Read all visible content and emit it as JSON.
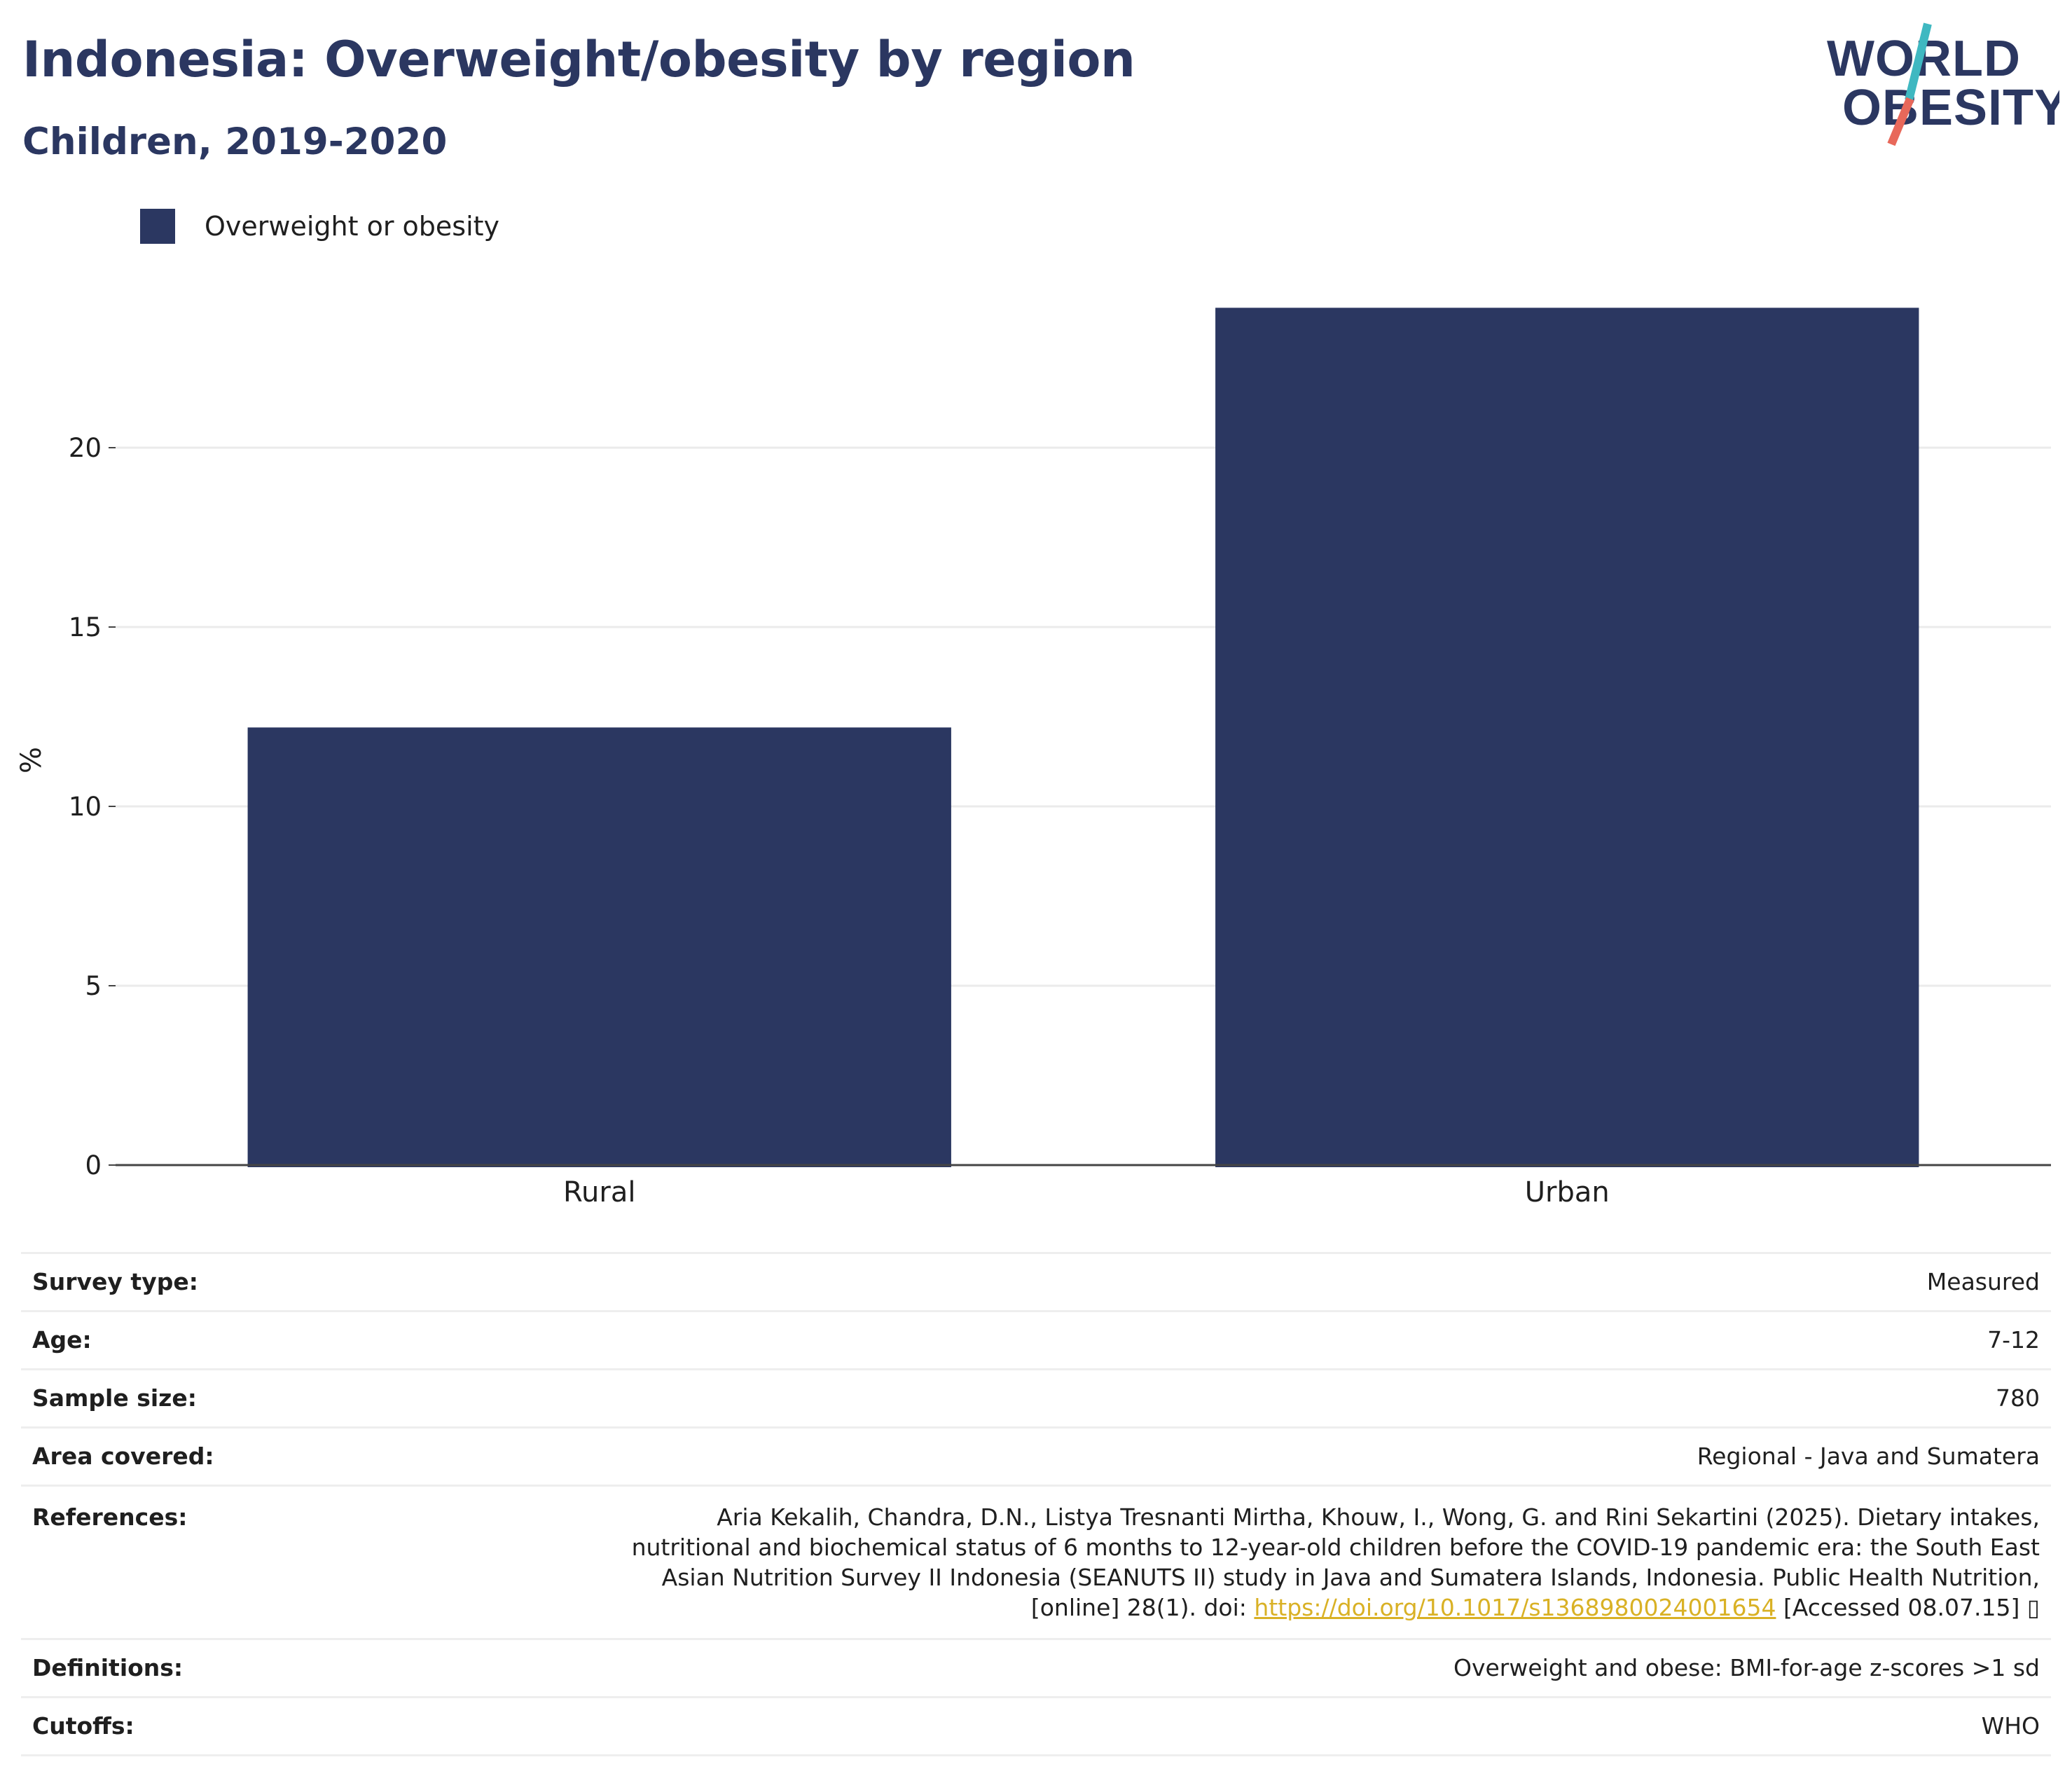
{
  "header": {
    "title": "Indonesia: Overweight/obesity by region",
    "subtitle": "Children, 2019-2020"
  },
  "logo": {
    "line1": "WORLD",
    "line2": "OBESITY",
    "colors": {
      "navy": "#2b3761",
      "teal": "#3fb8c1",
      "coral": "#e8685a"
    }
  },
  "legend": {
    "label": "Overweight or obesity",
    "color": "#2b3761"
  },
  "chart_data": {
    "type": "bar",
    "categories": [
      "Rural",
      "Urban"
    ],
    "series": [
      {
        "name": "Overweight or obesity",
        "values": [
          12.2,
          23.9
        ],
        "color": "#2b3761"
      }
    ],
    "ylabel": "%",
    "ylim": [
      0,
      25
    ],
    "yticks": [
      0,
      5,
      10,
      15,
      20
    ],
    "grid": true
  },
  "meta": {
    "survey_type": {
      "label": "Survey type:",
      "value": "Measured"
    },
    "age": {
      "label": "Age:",
      "value": "7-12"
    },
    "sample_size": {
      "label": "Sample size:",
      "value": "780"
    },
    "area_covered": {
      "label": "Area covered:",
      "value": "Regional - Java and Sumatera"
    },
    "references": {
      "label": "References:",
      "text": "Aria Kekalih, Chandra, D.N., Listya Tresnanti Mirtha, Khouw, I., Wong, G. and Rini Sekartini (2025). Dietary intakes, nutritional and biochemical status of 6 months to 12-year-old children before the COVID-19 pandemic era: the South East Asian Nutrition Survey II Indonesia (SEANUTS II) study in Java and Sumatera Islands, Indonesia. Public Health Nutrition, [online] 28(1). doi:",
      "link": "https://doi.org/10.1017/s1368980024001654",
      "suffix": "[Accessed 08.07.15] ▯"
    },
    "definitions": {
      "label": "Definitions:",
      "value": "Overweight and obese: BMI-for-age z-scores >1 sd"
    },
    "cutoffs": {
      "label": "Cutoffs:",
      "value": "WHO"
    }
  }
}
